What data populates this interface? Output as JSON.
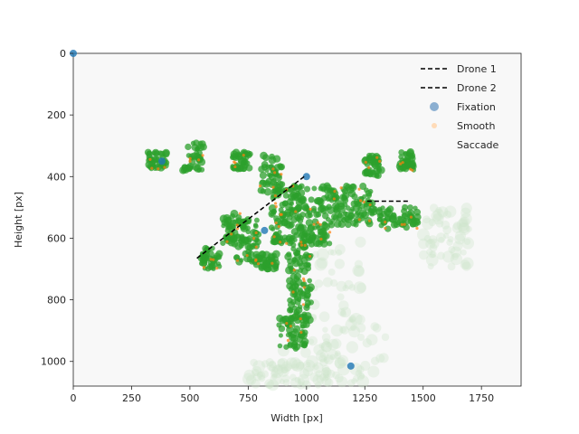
{
  "chart_data": {
    "type": "scatter",
    "xlabel": "Width [px]",
    "ylabel": "Height [px]",
    "xlim": [
      0,
      1920
    ],
    "ylim": [
      1080,
      0
    ],
    "x_ticks": [
      "0",
      "250",
      "500",
      "750",
      "1000",
      "1250",
      "1500",
      "1750"
    ],
    "x_tick_values": [
      0,
      250,
      500,
      750,
      1000,
      1250,
      1500,
      1750
    ],
    "y_ticks": [
      "0",
      "200",
      "400",
      "600",
      "800",
      "1000"
    ],
    "y_tick_values": [
      0,
      200,
      400,
      600,
      800,
      1000
    ],
    "legend_position": "top-right",
    "legend": [
      {
        "label": "Drone 1",
        "kind": "line",
        "color": "#000000"
      },
      {
        "label": "Drone 2",
        "kind": "line",
        "color": "#000000"
      },
      {
        "label": "Fixation",
        "kind": "point",
        "color": "#7ea6cc"
      },
      {
        "label": "Smooth",
        "kind": "point",
        "color": "#ffd7b0"
      },
      {
        "label": "Saccade",
        "kind": "point",
        "color": "#2ca02c"
      }
    ],
    "series": [
      {
        "name": "Drone 1",
        "type": "line",
        "color": "#000000",
        "x": [
          530,
          990
        ],
        "y": [
          665,
          400
        ]
      },
      {
        "name": "Drone 2",
        "type": "line",
        "color": "#000000",
        "x": [
          1260,
          1440
        ],
        "y": [
          480,
          480
        ]
      },
      {
        "name": "Saccade",
        "type": "cluster",
        "color": "#2ca02c",
        "regions": [
          {
            "x": [
              850,
              1100
            ],
            "y": [
              430,
              620
            ]
          },
          {
            "x": [
              1100,
              1280
            ],
            "y": [
              430,
              560
            ]
          },
          {
            "x": [
              1280,
              1480
            ],
            "y": [
              500,
              570
            ]
          },
          {
            "x": [
              920,
              1020
            ],
            "y": [
              600,
              870
            ]
          },
          {
            "x": [
              880,
              1000
            ],
            "y": [
              850,
              960
            ]
          },
          {
            "x": [
              640,
              720
            ],
            "y": [
              520,
              620
            ]
          },
          {
            "x": [
              540,
              630
            ],
            "y": [
              630,
              700
            ]
          },
          {
            "x": [
              320,
              400
            ],
            "y": [
              320,
              380
            ]
          },
          {
            "x": [
              470,
              560
            ],
            "y": [
              290,
              380
            ]
          },
          {
            "x": [
              680,
              760
            ],
            "y": [
              320,
              380
            ]
          },
          {
            "x": [
              800,
              900
            ],
            "y": [
              330,
              450
            ]
          },
          {
            "x": [
              1250,
              1320
            ],
            "y": [
              330,
              400
            ]
          },
          {
            "x": [
              1400,
              1460
            ],
            "y": [
              320,
              380
            ]
          },
          {
            "x": [
              700,
              800
            ],
            "y": [
              540,
              680
            ]
          },
          {
            "x": [
              780,
              880
            ],
            "y": [
              650,
              700
            ]
          }
        ]
      },
      {
        "name": "Smooth",
        "type": "cluster",
        "color": "#ff7f0e",
        "regions": []
      },
      {
        "name": "Fixation",
        "type": "cluster",
        "color": "#1f77b4",
        "points": [
          [
            0,
            0
          ],
          [
            1000,
            400
          ],
          [
            1190,
            1015
          ],
          [
            820,
            575
          ],
          [
            380,
            350
          ]
        ]
      }
    ]
  }
}
